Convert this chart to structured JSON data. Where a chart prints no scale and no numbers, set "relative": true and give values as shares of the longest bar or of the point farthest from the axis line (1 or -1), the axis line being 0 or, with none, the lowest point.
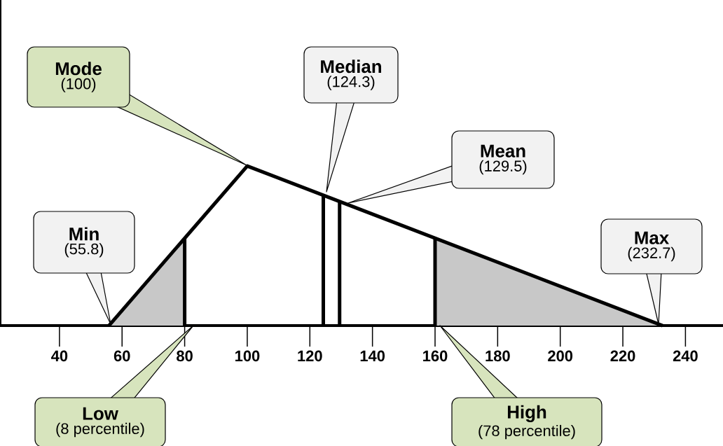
{
  "chart_data": {
    "type": "line",
    "relative": true,
    "xlim": [
      21,
      252
    ],
    "xticks": [
      40,
      60,
      80,
      100,
      120,
      140,
      160,
      180,
      200,
      220,
      240
    ],
    "series": [
      {
        "color": "#000000",
        "x": [
          55.8,
          100,
          232.7
        ],
        "values": [
          0,
          1,
          0
        ]
      },
      {
        "type": "area",
        "color": "#c8c8c8",
        "x": [
          55.8,
          80
        ],
        "values": [
          0,
          0.548
        ]
      },
      {
        "type": "area",
        "color": "#c8c8c8",
        "x": [
          160,
          232.7
        ],
        "values": [
          0.548,
          0
        ]
      },
      {
        "color": "#000000",
        "x": [
          80,
          80
        ],
        "values": [
          0,
          0.548
        ]
      },
      {
        "color": "#000000",
        "x": [
          124.3,
          124.3
        ],
        "values": [
          0,
          0.817
        ]
      },
      {
        "color": "#000000",
        "x": [
          129.5,
          129.5
        ],
        "values": [
          0,
          0.778
        ]
      },
      {
        "color": "#000000",
        "x": [
          160,
          160
        ],
        "values": [
          0,
          0.548
        ]
      }
    ],
    "annotations": [
      "Mode",
      "(100)",
      "Median",
      "(124.3)",
      "Mean",
      "(129.5)",
      "Min",
      "(55.8)",
      "Max",
      "(232.7)",
      "Low",
      "(8 percentile)",
      "High",
      "(78 percentile)"
    ]
  }
}
